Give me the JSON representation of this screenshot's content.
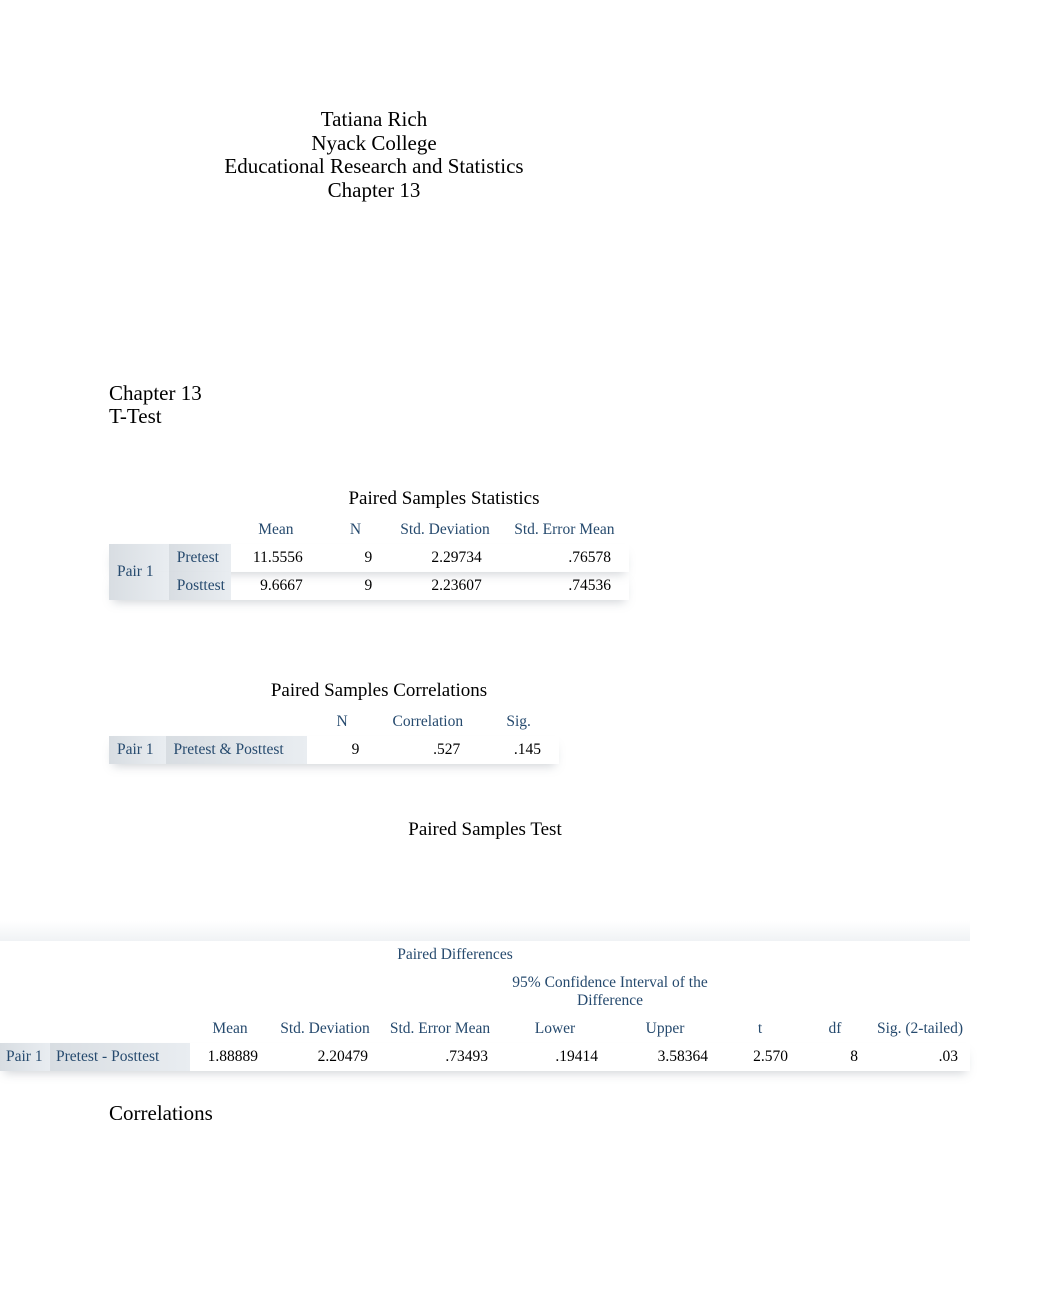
{
  "colors": {
    "background": "#ffffff",
    "text": "#000000",
    "table_header_text": "#264a6e",
    "stub_bg_start": "#d8dde2",
    "stub_bg_end": "#e9edf1",
    "row_shadow": "rgba(120,130,140,0.35)"
  },
  "typography": {
    "body_family": "Times New Roman",
    "title_fontsize": 21,
    "table_fontsize": 15.5,
    "table_title_fontsize": 19
  },
  "header": {
    "author": "Tatiana Rich",
    "institution": "Nyack College",
    "course": "Educational Research and Statistics",
    "chapter": "Chapter 13"
  },
  "section": {
    "chapter_line": "Chapter 13",
    "test_line": "T-Test"
  },
  "statistics_table": {
    "title": "Paired Samples Statistics",
    "type": "table",
    "columns": [
      "Mean",
      "N",
      "Std. Deviation",
      "Std. Error Mean"
    ],
    "stub_group": "Pair 1",
    "rows": [
      {
        "label": "Pretest",
        "mean": "11.5556",
        "n": "9",
        "sd": "2.29734",
        "sem": ".76578"
      },
      {
        "label": "Posttest",
        "mean": "9.6667",
        "n": "9",
        "sd": "2.23607",
        "sem": ".74536"
      }
    ]
  },
  "correlations_table": {
    "title": "Paired Samples Correlations",
    "type": "table",
    "columns": [
      "N",
      "Correlation",
      "Sig."
    ],
    "stub_group": "Pair 1",
    "row": {
      "label": "Pretest & Posttest",
      "n": "9",
      "correlation": ".527",
      "sig": ".145"
    }
  },
  "test_table": {
    "title": "Paired Samples Test",
    "type": "table",
    "group_header": "Paired Differences",
    "ci_header": "95% Confidence Interval of the Difference",
    "columns": [
      "Mean",
      "Std. Deviation",
      "Std. Error Mean",
      "Lower",
      "Upper",
      "t",
      "df",
      "Sig. (2-tailed)"
    ],
    "stub_group": "Pair 1",
    "row": {
      "label": "Pretest - Posttest",
      "mean": "1.88889",
      "sd": "2.20479",
      "sem": ".73493",
      "lower": ".19414",
      "upper": "3.58364",
      "t": "2.570",
      "df": "8",
      "sig": ".03"
    }
  },
  "footer_heading": "Correlations"
}
